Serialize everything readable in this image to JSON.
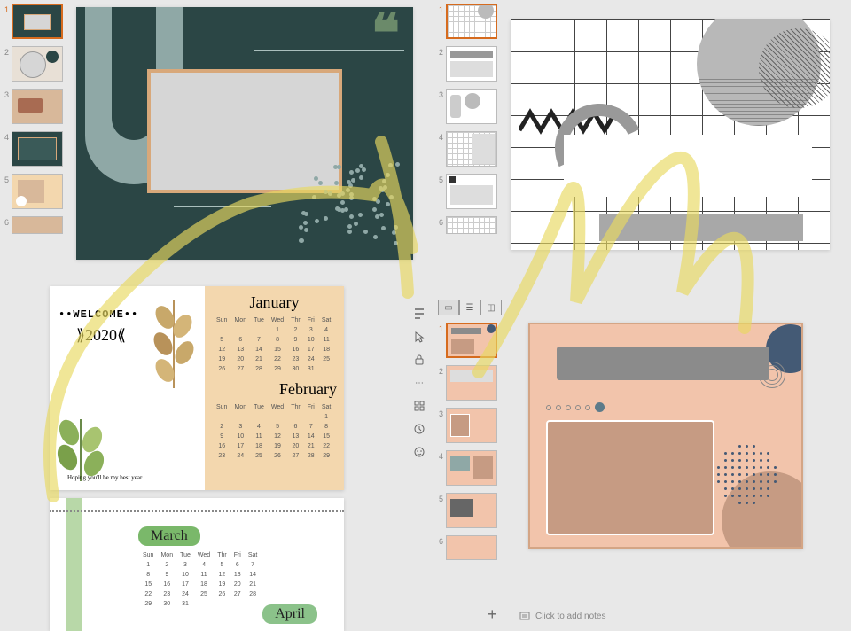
{
  "quadrant1": {
    "thumbs": [
      {
        "n": 1,
        "selected": true,
        "bg": "#2b4645"
      },
      {
        "n": 2,
        "selected": false,
        "bg": "#e8e0d6"
      },
      {
        "n": 3,
        "selected": false,
        "bg": "#d8b89a"
      },
      {
        "n": 4,
        "selected": false,
        "bg": "#2b4645"
      },
      {
        "n": 5,
        "selected": false,
        "bg": "#f3d7ae"
      },
      {
        "n": 6,
        "selected": false,
        "bg": "#d8b89a"
      }
    ],
    "slide": {
      "bg": "#2b4645",
      "frame_border": "#d8a87a",
      "frame_fill": "#d6d6d6",
      "accent_shape": "#8fa8a6",
      "quote_color": "#6b8a6a",
      "dot_color": "#8fa8a6"
    }
  },
  "quadrant2": {
    "thumbs": [
      {
        "n": 1,
        "selected": true
      },
      {
        "n": 2,
        "selected": false
      },
      {
        "n": 3,
        "selected": false
      },
      {
        "n": 4,
        "selected": false
      },
      {
        "n": 5,
        "selected": false
      },
      {
        "n": 6,
        "selected": false
      }
    ],
    "slide": {
      "grid_cell": 36,
      "grid_color": "#444444",
      "circle_fill": "#b8b8b8",
      "hatch_color": "#666666",
      "arc_color": "#999999"
    }
  },
  "quadrant3": {
    "welcome_label": "••WELCOME••",
    "year_label": "⟫2020⟪",
    "month1": "January",
    "month2": "February",
    "month3": "March",
    "month4": "April",
    "days": [
      "Sun",
      "Mon",
      "Tue",
      "Wed",
      "Thr",
      "Fri",
      "Sat"
    ],
    "jan_weeks": [
      [
        "",
        "",
        "",
        "1",
        "2",
        "3",
        "4"
      ],
      [
        "5",
        "6",
        "7",
        "8",
        "9",
        "10",
        "11"
      ],
      [
        "12",
        "13",
        "14",
        "15",
        "16",
        "17",
        "18"
      ],
      [
        "19",
        "20",
        "21",
        "22",
        "23",
        "24",
        "25"
      ],
      [
        "26",
        "27",
        "28",
        "29",
        "30",
        "31",
        ""
      ]
    ],
    "feb_weeks": [
      [
        "",
        "",
        "",
        "",
        "",
        "",
        "1"
      ],
      [
        "2",
        "3",
        "4",
        "5",
        "6",
        "7",
        "8"
      ],
      [
        "9",
        "10",
        "11",
        "12",
        "13",
        "14",
        "15"
      ],
      [
        "16",
        "17",
        "18",
        "19",
        "20",
        "21",
        "22"
      ],
      [
        "23",
        "24",
        "25",
        "26",
        "27",
        "28",
        "29"
      ]
    ],
    "mar_weeks": [
      [
        "1",
        "2",
        "3",
        "4",
        "5",
        "6",
        "7"
      ],
      [
        "8",
        "9",
        "10",
        "11",
        "12",
        "13",
        "14"
      ],
      [
        "15",
        "16",
        "17",
        "18",
        "19",
        "20",
        "21"
      ],
      [
        "22",
        "23",
        "24",
        "25",
        "26",
        "27",
        "28"
      ],
      [
        "29",
        "30",
        "31",
        "",
        "",
        "",
        ""
      ]
    ],
    "tagline": "Hoping you'll be my best year",
    "right_bg": "#f3d7ae",
    "green_accent": "#8bc28a"
  },
  "quadrant4": {
    "view_modes": [
      "normal",
      "outline",
      "sorter"
    ],
    "thumbs": [
      {
        "n": 1,
        "selected": true
      },
      {
        "n": 2,
        "selected": false
      },
      {
        "n": 3,
        "selected": false
      },
      {
        "n": 4,
        "selected": false
      },
      {
        "n": 5,
        "selected": false
      },
      {
        "n": 6,
        "selected": false
      }
    ],
    "slide": {
      "bg": "#f2c4ab",
      "border": "#d4a585",
      "bar_fill": "#8b8b8b",
      "navy": "#445a75",
      "pager_fill": "#5d7b8a",
      "placeholder_fill": "#c69b83",
      "placeholder_border": "#ffffff",
      "dot_color": "#445a75"
    },
    "tools": [
      "design-ideas",
      "cursor",
      "lock",
      "more",
      "accessibility",
      "history",
      "feedback"
    ],
    "notes_placeholder": "Click to add notes",
    "add_slide_glyph": "+"
  },
  "scribble_color": "#e8d860"
}
